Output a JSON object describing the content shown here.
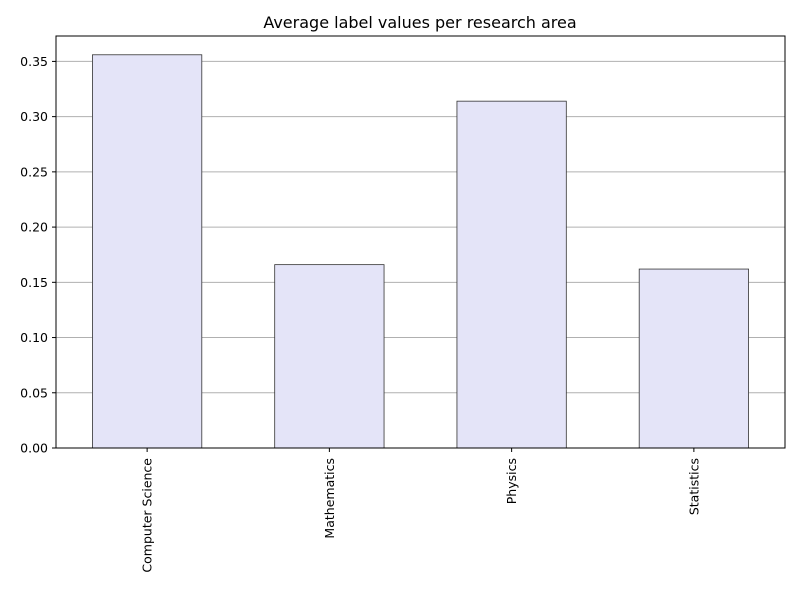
{
  "chart_data": {
    "type": "bar",
    "title": "Average label values per research area",
    "xlabel": "",
    "ylabel": "",
    "categories": [
      "Computer Science",
      "Mathematics",
      "Physics",
      "Statistics"
    ],
    "values": [
      0.356,
      0.166,
      0.314,
      0.162
    ],
    "ylim": [
      0,
      0.373
    ],
    "yticks": [
      "0.00",
      "0.05",
      "0.10",
      "0.15",
      "0.20",
      "0.25",
      "0.30",
      "0.35"
    ],
    "grid": "horizontal",
    "legend": "none",
    "colors": {
      "bar_fill": "#e4e4f8",
      "bar_edge": "#333333",
      "grid": "#b0b0b0",
      "axis": "#000000"
    }
  }
}
